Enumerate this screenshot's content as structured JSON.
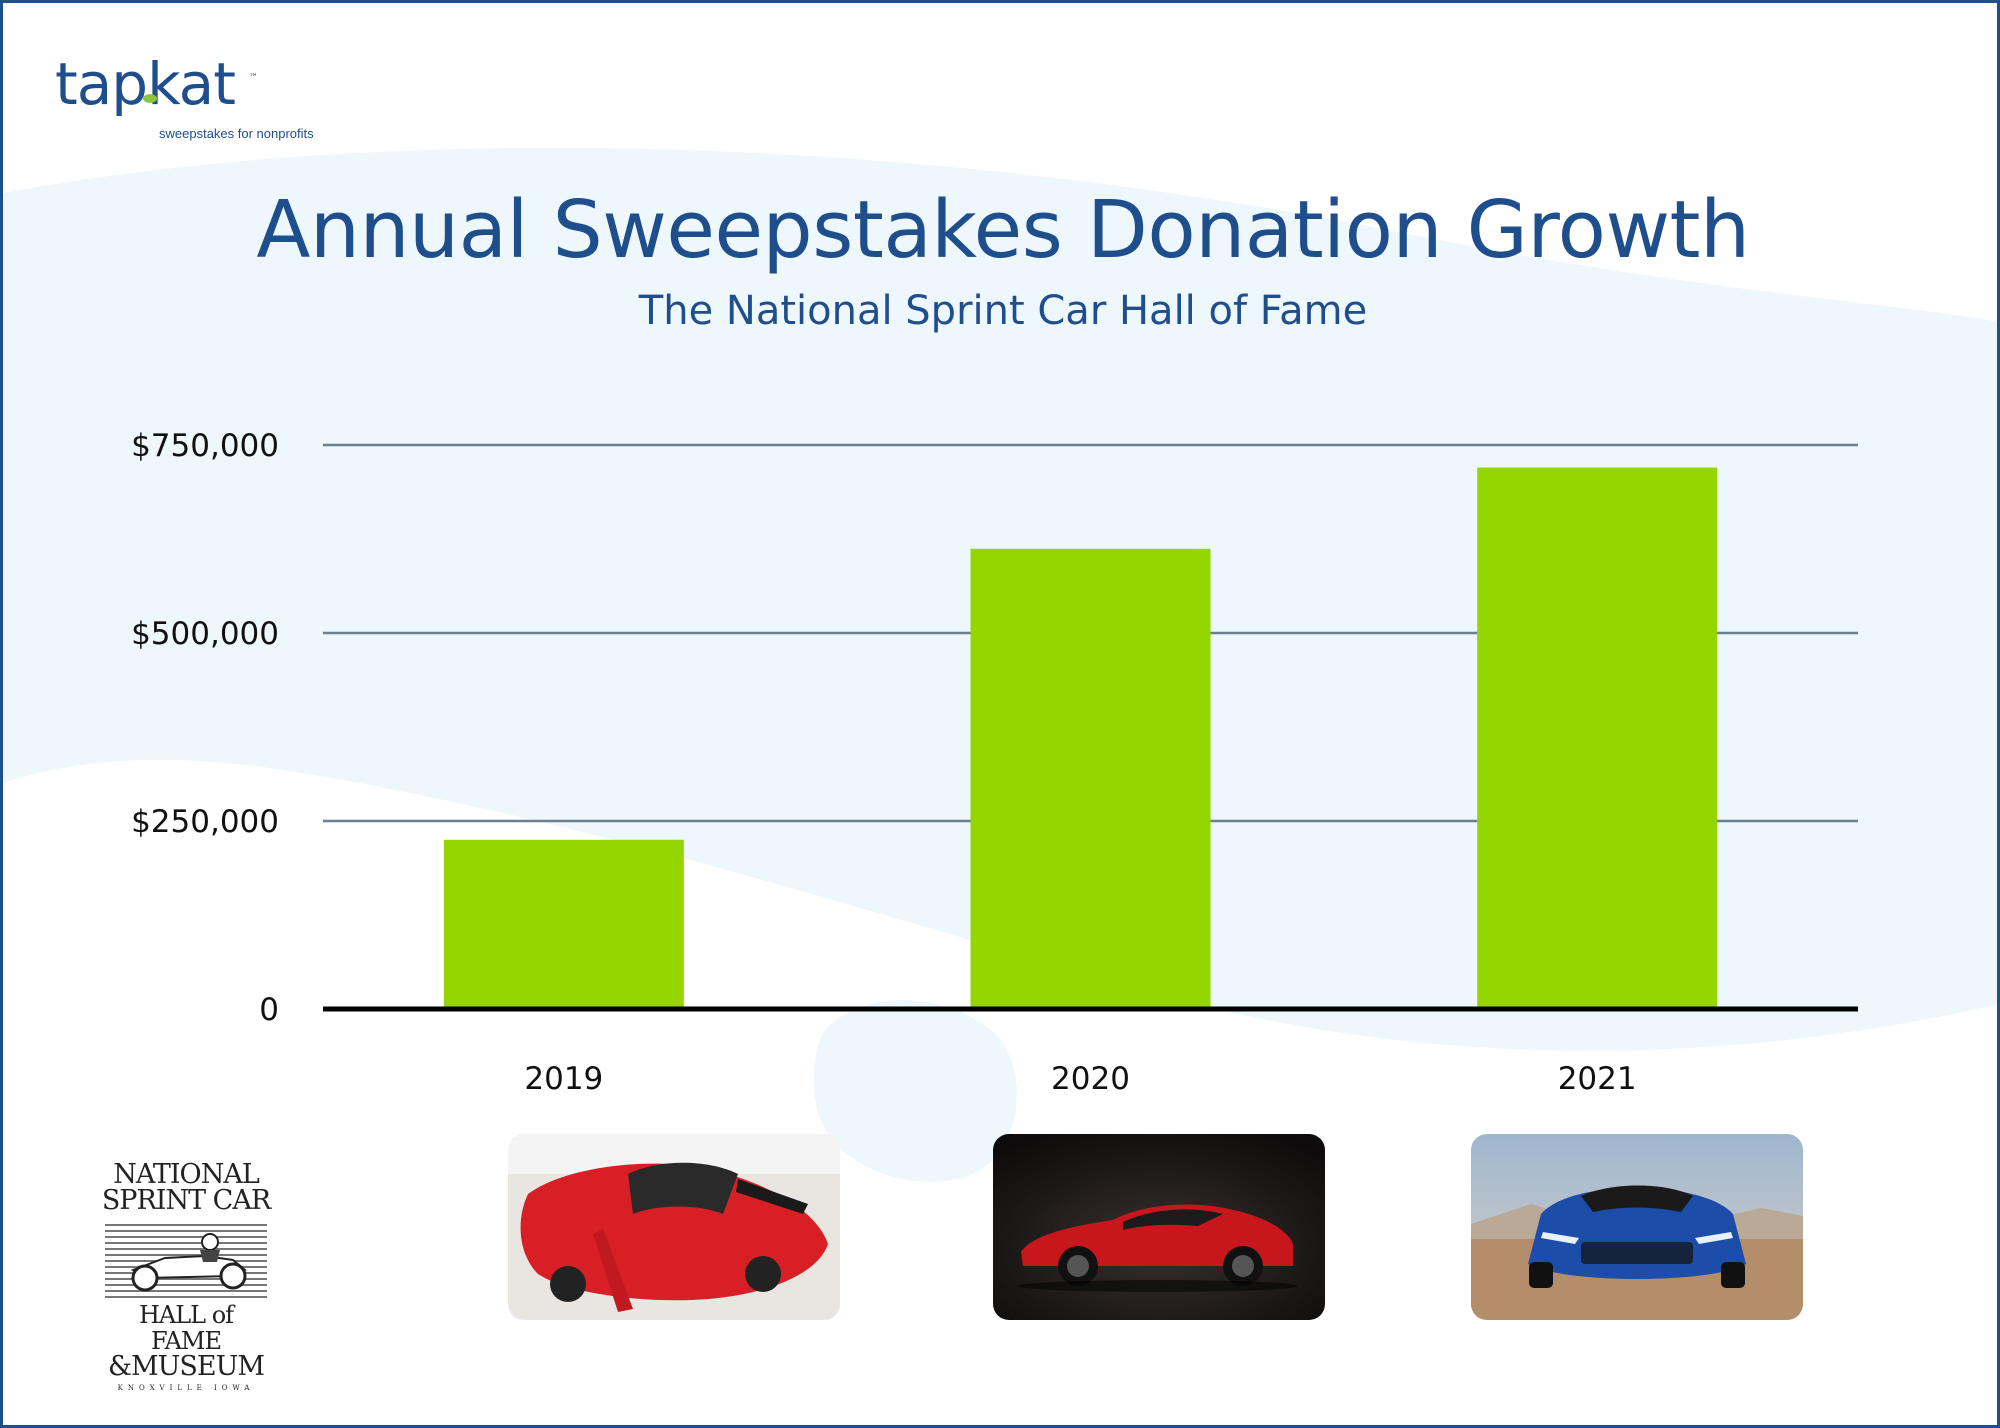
{
  "logo": {
    "word": "tapkat",
    "tm": "™",
    "tagline": "sweepstakes for nonprofits"
  },
  "colors": {
    "brand": "#1f4e8c",
    "bar": "#95d600",
    "grid": "#6b7f93",
    "axis": "#000000",
    "bg_shape": "#eef7fb"
  },
  "chart_data": {
    "type": "bar",
    "title": "Annual Sweepstakes Donation Growth",
    "subtitle": "The National Sprint Car Hall of Fame",
    "categories": [
      "2019",
      "2020",
      "2021"
    ],
    "values": [
      225000,
      612000,
      720000
    ],
    "yticks": [
      {
        "value": 0,
        "label": "0"
      },
      {
        "value": 250000,
        "label": "$250,000"
      },
      {
        "value": 500000,
        "label": "$500,000"
      },
      {
        "value": 750000,
        "label": "$750,000"
      }
    ],
    "ylim": [
      0,
      750000
    ],
    "xlabel": "",
    "ylabel": "",
    "grid": true
  },
  "car_photos": [
    {
      "year": "2019",
      "icon": "red-convertible-car-photo"
    },
    {
      "year": "2020",
      "icon": "red-sports-car-photo"
    },
    {
      "year": "2021",
      "icon": "blue-sports-car-photo"
    }
  ],
  "museum_logo": {
    "line1": "NATIONAL",
    "line2": "SPRINT CAR",
    "line3": "HALL of FAME",
    "line4": "&MUSEUM",
    "line5": "KNOXVILLE IOWA"
  }
}
